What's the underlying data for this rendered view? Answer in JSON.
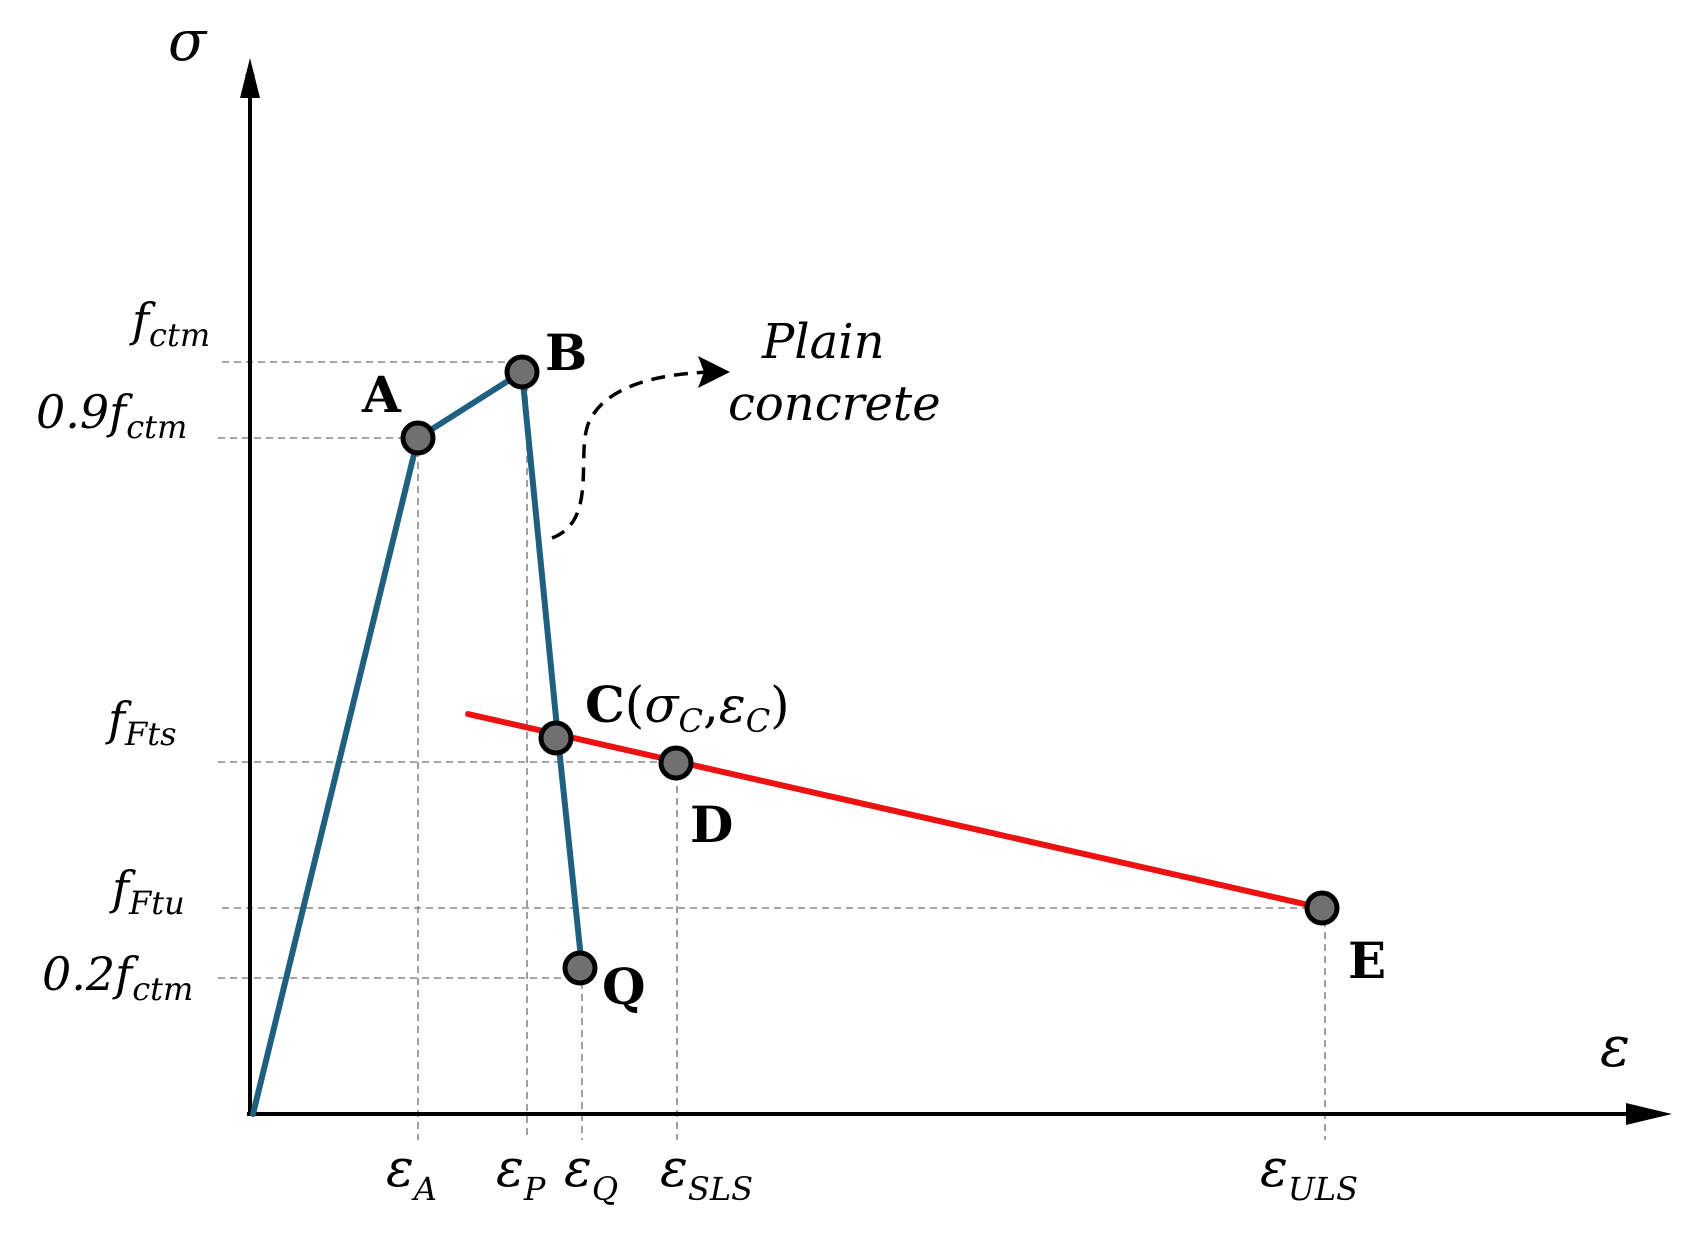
{
  "axes": {
    "y_label": "σ",
    "x_label": "ε"
  },
  "y_ticks": {
    "fctm": {
      "base": "f",
      "sub": "ctm"
    },
    "fctm09": {
      "prefix": "0.9",
      "base": "f",
      "sub": "ctm"
    },
    "ffts": {
      "base": "f",
      "sub": "Fts"
    },
    "fftu": {
      "base": "f",
      "sub": "Ftu"
    },
    "fctm02": {
      "prefix": "0.2",
      "base": "f",
      "sub": "ctm"
    }
  },
  "x_ticks": {
    "eA": {
      "base": "ε",
      "sub": "A"
    },
    "eP": {
      "base": "ε",
      "sub": "P"
    },
    "eQ": {
      "base": "ε",
      "sub": "Q"
    },
    "eSLS": {
      "base": "ε",
      "sub": "SLS"
    },
    "eULS": {
      "base": "ε",
      "sub": "ULS"
    }
  },
  "points": {
    "A": "A",
    "B": "B",
    "C": {
      "letter": "C",
      "open": "(",
      "s": "σ",
      "s_sub": "C",
      "comma": ",",
      "e": "ε",
      "e_sub": "C",
      "close": ")"
    },
    "D": "D",
    "E": "E",
    "Q": "Q"
  },
  "annotation": {
    "line1": "Plain",
    "line2": "concrete"
  },
  "colors": {
    "blue_curve": "#1f5f80",
    "red_curve": "#ee1111",
    "point_fill": "#707070",
    "axis": "#000000"
  }
}
